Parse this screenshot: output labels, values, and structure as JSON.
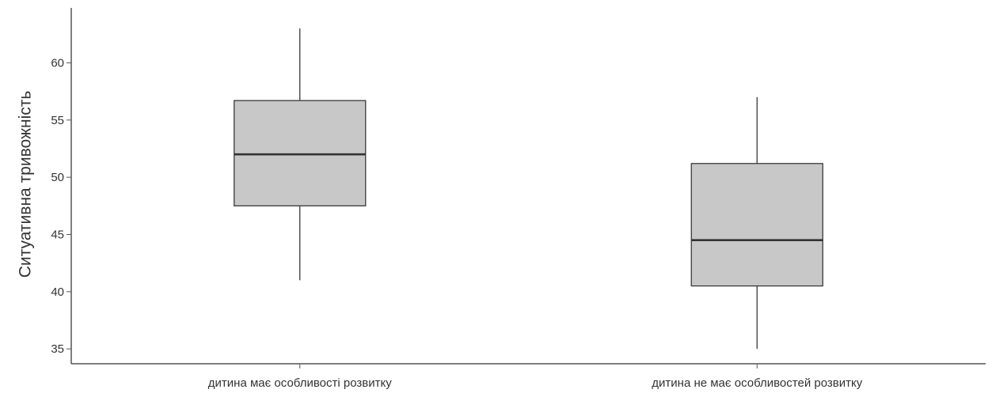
{
  "chart_data": {
    "type": "box",
    "title": "",
    "xlabel": "",
    "ylabel": "Ситуативна тривожність",
    "ylim": [
      33.7,
      64.8
    ],
    "y_ticks": [
      35,
      40,
      45,
      50,
      55,
      60
    ],
    "grid": false,
    "categories": [
      "дитина має особливості розвитку",
      "дитина не має особливостей розвитку"
    ],
    "boxes": [
      {
        "category": "дитина має особливості розвитку",
        "min": 41,
        "q1": 47.5,
        "median": 52,
        "q3": 56.7,
        "max": 63
      },
      {
        "category": "дитина не має особливостей розвитку",
        "min": 35,
        "q1": 40.5,
        "median": 44.5,
        "q3": 51.2,
        "max": 57
      }
    ],
    "colors": {
      "box_fill": "#c8c8c8",
      "box_stroke": "#3a3a3a",
      "median": "#333333",
      "axis": "#555555"
    }
  }
}
